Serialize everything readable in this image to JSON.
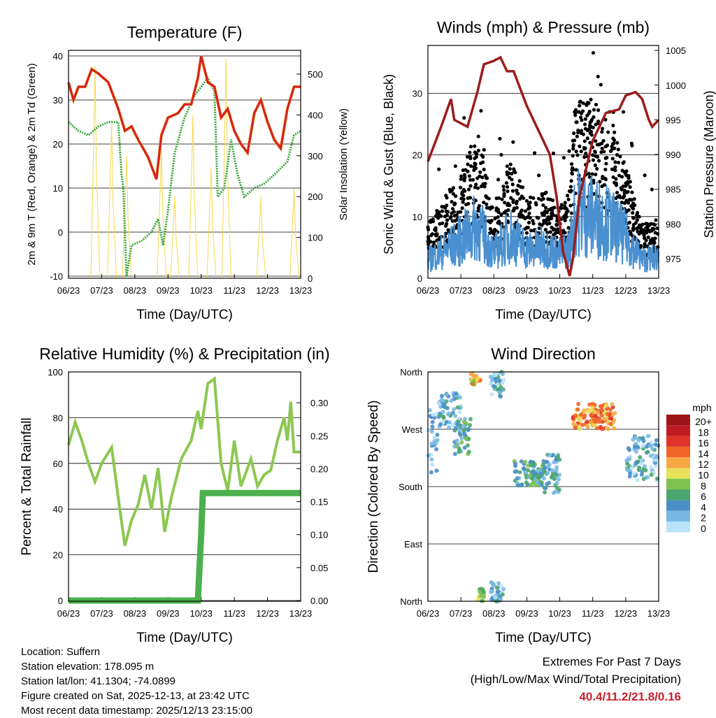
{
  "chart_data": [
    {
      "type": "line",
      "title": "Temperature (F)",
      "xlabel": "Time (Day/UTC)",
      "ylabel": "2m & 9m T (Red, Orange) & 2m Td (Green)",
      "y2label": "Solar Insolation (Yellow)",
      "xticks": [
        "06/23",
        "07/23",
        "08/23",
        "09/23",
        "10/23",
        "11/23",
        "12/23",
        "13/23"
      ],
      "ylim": [
        -10,
        40
      ],
      "yticks": [
        -10,
        0,
        10,
        20,
        30,
        40
      ],
      "y2lim": [
        0,
        515
      ],
      "y2ticks": [
        0,
        100,
        200,
        300,
        400,
        500
      ],
      "series": [
        {
          "name": "2m T",
          "color": "#d62020",
          "axis": "left",
          "points": [
            [
              0,
              34
            ],
            [
              0.15,
              30
            ],
            [
              0.3,
              33
            ],
            [
              0.5,
              33
            ],
            [
              0.7,
              37
            ],
            [
              0.9,
              36
            ],
            [
              1.2,
              34
            ],
            [
              1.5,
              28
            ],
            [
              1.7,
              23
            ],
            [
              1.9,
              24
            ],
            [
              2.1,
              21
            ],
            [
              2.4,
              17
            ],
            [
              2.6,
              13
            ],
            [
              2.65,
              12
            ],
            [
              2.8,
              22
            ],
            [
              3.0,
              26
            ],
            [
              3.3,
              27
            ],
            [
              3.5,
              29
            ],
            [
              3.7,
              29
            ],
            [
              3.9,
              35
            ],
            [
              4.0,
              40
            ],
            [
              4.2,
              34
            ],
            [
              4.4,
              33
            ],
            [
              4.6,
              26
            ],
            [
              4.8,
              28
            ],
            [
              5.0,
              23
            ],
            [
              5.2,
              20
            ],
            [
              5.4,
              18
            ],
            [
              5.6,
              27
            ],
            [
              5.8,
              30
            ],
            [
              6.0,
              25
            ],
            [
              6.2,
              21
            ],
            [
              6.4,
              19
            ],
            [
              6.6,
              28
            ],
            [
              6.8,
              33
            ],
            [
              7.0,
              33
            ]
          ]
        },
        {
          "name": "2m Td",
          "color": "#3aa53a",
          "axis": "left",
          "dotted": true,
          "points": [
            [
              0,
              25
            ],
            [
              0.3,
              23
            ],
            [
              0.6,
              22
            ],
            [
              0.9,
              24
            ],
            [
              1.2,
              25
            ],
            [
              1.5,
              25
            ],
            [
              1.6,
              13
            ],
            [
              1.65,
              10
            ],
            [
              1.75,
              -10
            ],
            [
              1.9,
              -3
            ],
            [
              2.2,
              -2
            ],
            [
              2.5,
              0
            ],
            [
              2.7,
              3
            ],
            [
              2.85,
              -3
            ],
            [
              3.0,
              5
            ],
            [
              3.2,
              18
            ],
            [
              3.5,
              26
            ],
            [
              3.8,
              31
            ],
            [
              4.0,
              33
            ],
            [
              4.2,
              35
            ],
            [
              4.4,
              32
            ],
            [
              4.5,
              8
            ],
            [
              4.7,
              10
            ],
            [
              4.9,
              21
            ],
            [
              5.1,
              13
            ],
            [
              5.3,
              8
            ],
            [
              5.6,
              10
            ],
            [
              5.9,
              11
            ],
            [
              6.2,
              13
            ],
            [
              6.6,
              16
            ],
            [
              6.8,
              22
            ],
            [
              7.0,
              23
            ]
          ]
        }
      ],
      "solar_peaks": [
        [
          0.8,
          520
        ],
        [
          1.3,
          380
        ],
        [
          1.75,
          300
        ],
        [
          2.8,
          320
        ],
        [
          3.2,
          200
        ],
        [
          3.75,
          400
        ],
        [
          4.3,
          270
        ],
        [
          4.75,
          540
        ],
        [
          5.8,
          200
        ],
        [
          6.8,
          220
        ]
      ]
    },
    {
      "type": "scatter",
      "title": "Winds (mph) & Pressure (mb)",
      "xlabel": "Time (Day/UTC)",
      "ylabel": "Sonic Wind & Gust (Blue, Black)",
      "y2label": "Station Pressure (Maroon)",
      "xticks": [
        "06/23",
        "07/23",
        "08/23",
        "09/23",
        "10/23",
        "11/23",
        "12/23",
        "13/23"
      ],
      "ylim": [
        0,
        37.5
      ],
      "yticks": [
        0,
        10,
        20,
        30
      ],
      "y2lim": [
        972.2,
        1005.7
      ],
      "y2ticks": [
        975,
        980,
        985,
        990,
        995,
        1000,
        1005
      ],
      "gust_mean": [
        [
          0,
          6
        ],
        [
          1,
          12
        ],
        [
          1.5,
          17
        ],
        [
          2,
          8
        ],
        [
          2.5,
          14
        ],
        [
          3,
          9
        ],
        [
          3.5,
          10
        ],
        [
          4,
          8
        ],
        [
          4.3,
          10
        ],
        [
          4.5,
          22
        ],
        [
          5,
          20
        ],
        [
          5.5,
          18
        ],
        [
          6,
          13
        ],
        [
          6.5,
          6
        ],
        [
          7,
          7
        ]
      ],
      "pressure": [
        [
          0,
          989
        ],
        [
          0.4,
          994
        ],
        [
          0.7,
          998
        ],
        [
          0.8,
          995
        ],
        [
          1.2,
          994
        ],
        [
          1.5,
          999
        ],
        [
          1.7,
          1003
        ],
        [
          2.0,
          1003.5
        ],
        [
          2.2,
          1004
        ],
        [
          2.4,
          1002
        ],
        [
          2.6,
          1002
        ],
        [
          3.0,
          997
        ],
        [
          3.4,
          993
        ],
        [
          3.7,
          990
        ],
        [
          3.9,
          984
        ],
        [
          4.1,
          976
        ],
        [
          4.3,
          972.5
        ],
        [
          4.4,
          975
        ],
        [
          4.6,
          984
        ],
        [
          4.8,
          988
        ],
        [
          5.0,
          992
        ],
        [
          5.4,
          996
        ],
        [
          5.8,
          996.5
        ],
        [
          6.0,
          998.5
        ],
        [
          6.3,
          999
        ],
        [
          6.5,
          998
        ],
        [
          6.7,
          995
        ],
        [
          6.8,
          994
        ],
        [
          7.0,
          995
        ]
      ],
      "max_wind": 21.8
    },
    {
      "type": "line",
      "title": "Relative Humidity (%) & Precipitation (in)",
      "xlabel": "Time (Day/UTC)",
      "ylabel": "Percent & Total Rainfall",
      "xticks": [
        "06/23",
        "07/23",
        "08/23",
        "09/23",
        "10/23",
        "11/23",
        "12/23",
        "13/23"
      ],
      "ylim": [
        0,
        100
      ],
      "yticks": [
        0,
        20,
        40,
        60,
        80,
        100
      ],
      "y2lim": [
        0,
        0.347
      ],
      "y2ticks": [
        "0.00",
        "0.05",
        "0.10",
        "0.15",
        "0.20",
        "0.25",
        "0.30"
      ],
      "rh": [
        [
          0,
          68
        ],
        [
          0.2,
          78
        ],
        [
          0.4,
          70
        ],
        [
          0.6,
          60
        ],
        [
          0.8,
          52
        ],
        [
          1.0,
          60
        ],
        [
          1.3,
          67
        ],
        [
          1.5,
          45
        ],
        [
          1.7,
          24
        ],
        [
          1.9,
          35
        ],
        [
          2.1,
          42
        ],
        [
          2.3,
          55
        ],
        [
          2.5,
          40
        ],
        [
          2.7,
          58
        ],
        [
          2.9,
          30
        ],
        [
          3.1,
          45
        ],
        [
          3.4,
          62
        ],
        [
          3.7,
          70
        ],
        [
          3.9,
          83
        ],
        [
          4.0,
          75
        ],
        [
          4.2,
          95
        ],
        [
          4.4,
          97
        ],
        [
          4.6,
          60
        ],
        [
          4.8,
          48
        ],
        [
          5.0,
          70
        ],
        [
          5.2,
          50
        ],
        [
          5.5,
          62
        ],
        [
          5.7,
          50
        ],
        [
          5.9,
          55
        ],
        [
          6.1,
          57
        ],
        [
          6.3,
          70
        ],
        [
          6.5,
          80
        ],
        [
          6.6,
          70
        ],
        [
          6.7,
          87
        ],
        [
          6.8,
          65
        ],
        [
          7.0,
          65
        ]
      ],
      "precip": [
        [
          0,
          0
        ],
        [
          3.9,
          0
        ],
        [
          4.0,
          0.1
        ],
        [
          4.05,
          0.163
        ],
        [
          7.0,
          0.163
        ]
      ]
    },
    {
      "type": "scatter",
      "title": "Wind Direction",
      "xlabel": "Time (Day/UTC)",
      "ylabel": "Direction (Colored By Speed)",
      "xticks": [
        "06/23",
        "07/23",
        "08/23",
        "09/23",
        "10/23",
        "11/23",
        "12/23",
        "13/23"
      ],
      "yticks": [
        "North",
        "East",
        "South",
        "West",
        "North"
      ],
      "clusters": [
        [
          0,
          0.3,
          200,
          300,
          2
        ],
        [
          0.3,
          1.0,
          270,
          330,
          3
        ],
        [
          0.8,
          1.3,
          230,
          290,
          5
        ],
        [
          1.3,
          1.6,
          340,
          360,
          11
        ],
        [
          1.5,
          1.7,
          0,
          20,
          8
        ],
        [
          1.9,
          2.3,
          320,
          360,
          3
        ],
        [
          1.9,
          2.3,
          0,
          30,
          3
        ],
        [
          2.6,
          3.6,
          180,
          220,
          5
        ],
        [
          3.5,
          4.0,
          170,
          230,
          4
        ],
        [
          4.4,
          5.7,
          270,
          310,
          13
        ],
        [
          6.0,
          7.0,
          190,
          260,
          3
        ]
      ],
      "legend": {
        "title": "mph",
        "labels": [
          "20+",
          "18",
          "16",
          "14",
          "12",
          "10",
          "8",
          "6",
          "4",
          "2",
          "0"
        ],
        "colors": [
          "#9b1519",
          "#c01b22",
          "#e0332a",
          "#f06428",
          "#f7a845",
          "#e6e05a",
          "#7dc24e",
          "#4aa66e",
          "#4a8fc8",
          "#7ab9e6",
          "#b8e3f8"
        ]
      }
    }
  ],
  "info": {
    "location": "Location: Suffern",
    "elevation": "Station elevation: 178.095 m",
    "latlon": "Station lat/lon: 41.1304; -74.0899",
    "created": "Figure created on Sat, 2025-12-13, at 23:42 UTC",
    "recent": "Most recent data timestamp: 2025/12/13 23:15:00"
  },
  "extremes": {
    "title": "Extremes For Past 7 Days",
    "subtitle": "(High/Low/Max Wind/Total Precipitation)",
    "values": "40.4/11.2/21.8/0.16"
  }
}
